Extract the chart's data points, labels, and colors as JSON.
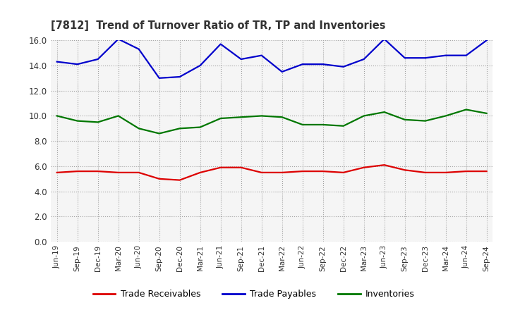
{
  "title": "[7812]  Trend of Turnover Ratio of TR, TP and Inventories",
  "x_labels": [
    "Jun-19",
    "Sep-19",
    "Dec-19",
    "Mar-20",
    "Jun-20",
    "Sep-20",
    "Dec-20",
    "Mar-21",
    "Jun-21",
    "Sep-21",
    "Dec-21",
    "Mar-22",
    "Jun-22",
    "Sep-22",
    "Dec-22",
    "Mar-23",
    "Jun-23",
    "Sep-23",
    "Dec-23",
    "Mar-24",
    "Jun-24",
    "Sep-24"
  ],
  "trade_receivables": [
    5.5,
    5.6,
    5.6,
    5.5,
    5.5,
    5.0,
    4.9,
    5.5,
    5.9,
    5.9,
    5.5,
    5.5,
    5.6,
    5.6,
    5.5,
    5.9,
    6.1,
    5.7,
    5.5,
    5.5,
    5.6,
    5.6
  ],
  "trade_payables": [
    14.3,
    14.1,
    14.5,
    16.1,
    15.3,
    13.0,
    13.1,
    14.0,
    15.7,
    14.5,
    14.8,
    13.5,
    14.1,
    14.1,
    13.9,
    14.5,
    16.1,
    14.6,
    14.6,
    14.8,
    14.8,
    16.0
  ],
  "inventories": [
    10.0,
    9.6,
    9.5,
    10.0,
    9.0,
    8.6,
    9.0,
    9.1,
    9.8,
    9.9,
    10.0,
    9.9,
    9.3,
    9.3,
    9.2,
    10.0,
    10.3,
    9.7,
    9.6,
    10.0,
    10.5,
    10.2
  ],
  "ylim": [
    0.0,
    16.0
  ],
  "yticks": [
    0.0,
    2.0,
    4.0,
    6.0,
    8.0,
    10.0,
    12.0,
    14.0,
    16.0
  ],
  "color_tr": "#dd0000",
  "color_tp": "#0000cc",
  "color_inv": "#007700",
  "legend_labels": [
    "Trade Receivables",
    "Trade Payables",
    "Inventories"
  ],
  "bg_color": "#ffffff",
  "plot_bg_color": "#f5f5f5",
  "grid_color": "#999999",
  "title_color": "#333333",
  "tick_color": "#333333"
}
